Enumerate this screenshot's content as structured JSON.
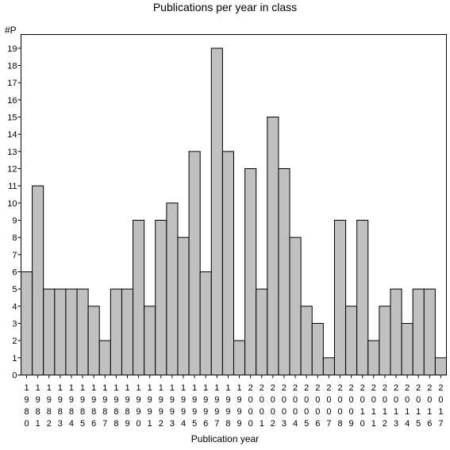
{
  "chart_data": {
    "type": "bar",
    "title": "Publications per year in class",
    "xlabel": "Publication year",
    "ylabel": "#P",
    "ylim": [
      0,
      19.8
    ],
    "yticks": [
      0,
      1,
      2,
      3,
      4,
      5,
      6,
      7,
      8,
      9,
      10,
      11,
      12,
      13,
      14,
      15,
      16,
      17,
      18,
      19
    ],
    "grid": false,
    "categories": [
      "1980",
      "1981",
      "1982",
      "1983",
      "1984",
      "1985",
      "1986",
      "1987",
      "1988",
      "1989",
      "1990",
      "1991",
      "1992",
      "1993",
      "1994",
      "1995",
      "1996",
      "1997",
      "1998",
      "1999",
      "2000",
      "2001",
      "2002",
      "2003",
      "2004",
      "2005",
      "2006",
      "2007",
      "2008",
      "2009",
      "2010",
      "2011",
      "2012",
      "2013",
      "2014",
      "2015",
      "2016",
      "2017"
    ],
    "values": [
      6,
      11,
      5,
      5,
      5,
      5,
      4,
      2,
      5,
      5,
      9,
      4,
      9,
      10,
      8,
      13,
      6,
      19,
      13,
      2,
      12,
      5,
      15,
      12,
      8,
      4,
      3,
      1,
      9,
      4,
      9,
      2,
      4,
      5,
      3,
      5,
      5,
      1
    ],
    "bar_color": "#c0c0c0"
  }
}
